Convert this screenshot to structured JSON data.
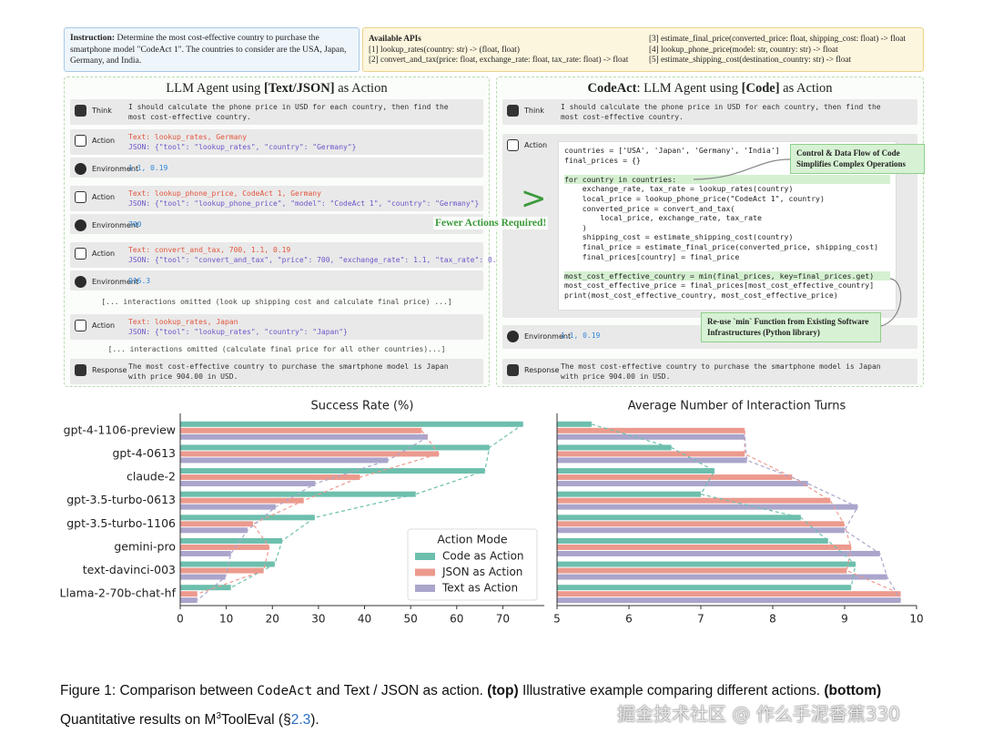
{
  "diagram": {
    "instruction": {
      "label": "Instruction:",
      "text": "Determine the most cost-effective country to purchase the smartphone model \"CodeAct 1\". The countries to consider are the USA, Japan, Germany, and India."
    },
    "apis": {
      "title": "Available APIs",
      "items": [
        "[1] lookup_rates(country: str) -> (float, float)",
        "[2] convert_and_tax(price: float, exchange_rate: float, tax_rate: float) -> float",
        "[3] estimate_final_price(converted_price: float, shipping_cost: float) -> float",
        "[4] lookup_phone_price(model: str, country: str) -> float",
        "[5] estimate_shipping_cost(destination_country: str) -> float"
      ]
    },
    "left_panel": {
      "title": [
        "LLM Agent using ",
        "[Text/JSON]",
        " as Action"
      ],
      "rows": [
        {
          "label": "Think",
          "lines": [
            "I should calculate the phone price in USD for each country, then find the",
            "most cost-effective country."
          ]
        },
        {
          "label": "Action",
          "text": "Text: lookup_rates, Germany",
          "json": "JSON: {\"tool\": \"lookup_rates\", \"country\": \"Germany\"}"
        },
        {
          "label": "Environment",
          "value": "1.1, 0.19"
        },
        {
          "label": "Action",
          "text": "Text: lookup_phone_price, CodeAct 1, Germany",
          "json": "JSON: {\"tool\": \"lookup_phone_price\", \"model\": \"CodeAct 1\", \"country\": \"Germany\"}"
        },
        {
          "label": "Environment",
          "value": "700"
        },
        {
          "label": "Action",
          "text": "Text: convert_and_tax, 700, 1.1, 0.19",
          "json": "JSON: {\"tool\": \"convert_and_tax\", \"price\": 700, \"exchange_rate\": 1.1, \"tax_rate\": 0.19}"
        },
        {
          "label": "Environment",
          "value": "916.3"
        },
        {
          "omitted": "[... interactions omitted (look up shipping cost and calculate final price) ...]"
        },
        {
          "label": "Action",
          "text": "Text: lookup_rates, Japan",
          "json": "JSON: {\"tool\": \"lookup_rates\", \"country\": \"Japan\"}"
        },
        {
          "omitted": "[... interactions omitted (calculate final price for all other countries)...]"
        },
        {
          "label": "Response",
          "lines": [
            "The most cost-effective country to purchase the smartphone model is Japan",
            "with price 904.00 in USD."
          ]
        }
      ]
    },
    "right_panel": {
      "title": [
        "CodeAct",
        ": LLM Agent using ",
        "[Code]",
        " as Action"
      ],
      "rows": [
        {
          "label": "Think",
          "lines": [
            "I should calculate the phone price in USD for each country, then find the",
            "most cost-effective country."
          ]
        },
        {
          "label": "Action",
          "code_blocks": [
            [
              "countries = ['USA', 'Japan', 'Germany', 'India']",
              "final_prices = {}"
            ],
            [
              "for country in countries:",
              "    exchange_rate, tax_rate = lookup_rates(country)",
              "    local_price = lookup_phone_price(\"CodeAct 1\", country)",
              "    converted_price = convert_and_tax(",
              "        local_price, exchange_rate, tax_rate",
              "    )",
              "    shipping_cost = estimate_shipping_cost(country)",
              "    final_price = estimate_final_price(converted_price, shipping_cost)",
              "    final_prices[country] = final_price"
            ],
            [
              "most_cost_effective_country = min(final_prices, key=final_prices.get)",
              "most_cost_effective_price = final_prices[most_cost_effective_country]",
              "print(most_cost_effective_country, most_cost_effective_price)"
            ]
          ]
        },
        {
          "label": "Environment",
          "value": "1.1, 0.19"
        },
        {
          "label": "Response",
          "lines": [
            "The most cost-effective country to purchase the smartphone model is Japan",
            "with price 904.00 in USD."
          ]
        }
      ]
    },
    "comparison": {
      "symbol": ">",
      "note": "Fewer Actions Required!"
    },
    "annotations": [
      "Control & Data Flow of Code Simplifies Complex Operations",
      "Re-use `min` Function from Existing Software Infrastructures (Python library)"
    ]
  },
  "chart_data": [
    {
      "type": "barh",
      "title": "Success Rate (%)",
      "categories": [
        "gpt-4-1106-preview",
        "gpt-4-0613",
        "claude-2",
        "gpt-3.5-turbo-0613",
        "gpt-3.5-turbo-1106",
        "gemini-pro",
        "text-davinci-003",
        "Llama-2-70b-chat-hf"
      ],
      "series": [
        {
          "name": "Code as Action",
          "color": "#6dbfad",
          "values": [
            74.4,
            67.1,
            66.1,
            51.1,
            29.2,
            22.1,
            20.5,
            11.0
          ]
        },
        {
          "name": "JSON as Action",
          "color": "#ec9a8e",
          "values": [
            52.4,
            56.1,
            39.0,
            26.8,
            15.8,
            19.3,
            18.1,
            3.7
          ]
        },
        {
          "name": "Text as Action",
          "color": "#aaa5cb",
          "values": [
            53.7,
            45.1,
            29.3,
            20.7,
            14.6,
            11.0,
            9.8,
            3.7
          ]
        }
      ],
      "xlim": [
        0,
        79
      ],
      "xticks": [
        0,
        10,
        20,
        30,
        40,
        50,
        60,
        70
      ],
      "connect_lines": "dashed",
      "grid": false,
      "legend": {
        "title": "Action Mode",
        "position": "lower right"
      }
    },
    {
      "type": "barh",
      "title": "Average Number of Interaction Turns",
      "series": [
        {
          "color": "#6dbfad",
          "values": [
            5.48,
            6.59,
            7.19,
            7.0,
            8.39,
            8.77,
            9.15,
            9.09
          ]
        },
        {
          "color": "#ec9a8e",
          "values": [
            7.61,
            7.61,
            8.27,
            8.8,
            8.99,
            9.09,
            9.03,
            9.78
          ]
        },
        {
          "color": "#aaa5cb",
          "values": [
            7.61,
            7.64,
            8.49,
            9.18,
            9.0,
            9.49,
            9.59,
            9.78
          ]
        }
      ],
      "xlim": [
        5,
        10
      ],
      "xticks": [
        5,
        6,
        7,
        8,
        9,
        10
      ],
      "connect_lines": "dashed",
      "grid": false
    }
  ],
  "caption": {
    "line1": [
      "Figure 1: Comparison between ",
      "CodeAct",
      " and Text / JSON as action. ",
      "(top)",
      " Illustrative example comparing different actions. ",
      "(bottom)"
    ],
    "line2": [
      "Quantitative results on M",
      "3",
      "ToolEval (§",
      "2.3",
      ")."
    ]
  },
  "watermark": "掘金技术社区 @ 作么手泥香蕉330"
}
